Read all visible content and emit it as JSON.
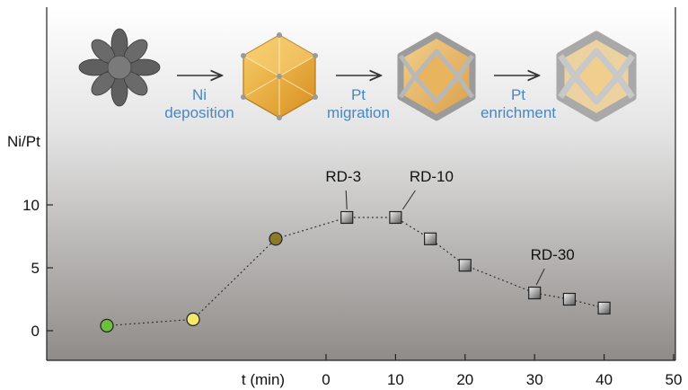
{
  "chart_data": {
    "type": "scatter",
    "title": "",
    "xlabel": "t (min)",
    "ylabel": "Ni/Pt",
    "xlim": [
      -40,
      50
    ],
    "ylim": [
      -5,
      15
    ],
    "x_ticks": [
      0,
      10,
      20,
      30,
      40,
      50
    ],
    "y_ticks": [
      0,
      5,
      10
    ],
    "grid": false,
    "background": "vertical gradient, light grey at top to dark grey at bottom",
    "precursor_points": [
      {
        "y": 0.4,
        "color": "#6fbf3f"
      },
      {
        "y": 0.9,
        "color": "#f2e96a"
      },
      {
        "y": 7.3,
        "color": "#8c7a2c"
      }
    ],
    "series": [
      {
        "marker": "square",
        "x": [
          3,
          10,
          15,
          20,
          30,
          35,
          40
        ],
        "y": [
          9.0,
          9.0,
          7.3,
          5.2,
          3.0,
          2.5,
          1.8
        ]
      }
    ],
    "annotations": [
      {
        "text": "RD-3",
        "x": 3,
        "y": 9.0
      },
      {
        "text": "RD-10",
        "x": 10,
        "y": 9.0
      },
      {
        "text": "RD-30",
        "x": 30,
        "y": 3.0
      }
    ],
    "stages": [
      {
        "name": "Ni",
        "name2": "deposition"
      },
      {
        "name": "Pt",
        "name2": "migration"
      },
      {
        "name": "Pt",
        "name2": "enrichment"
      }
    ],
    "colors": {
      "stage_text": "#4a86c0",
      "frame_gold": "#e3a63b",
      "frame_silver": "#c9c9c9"
    }
  }
}
